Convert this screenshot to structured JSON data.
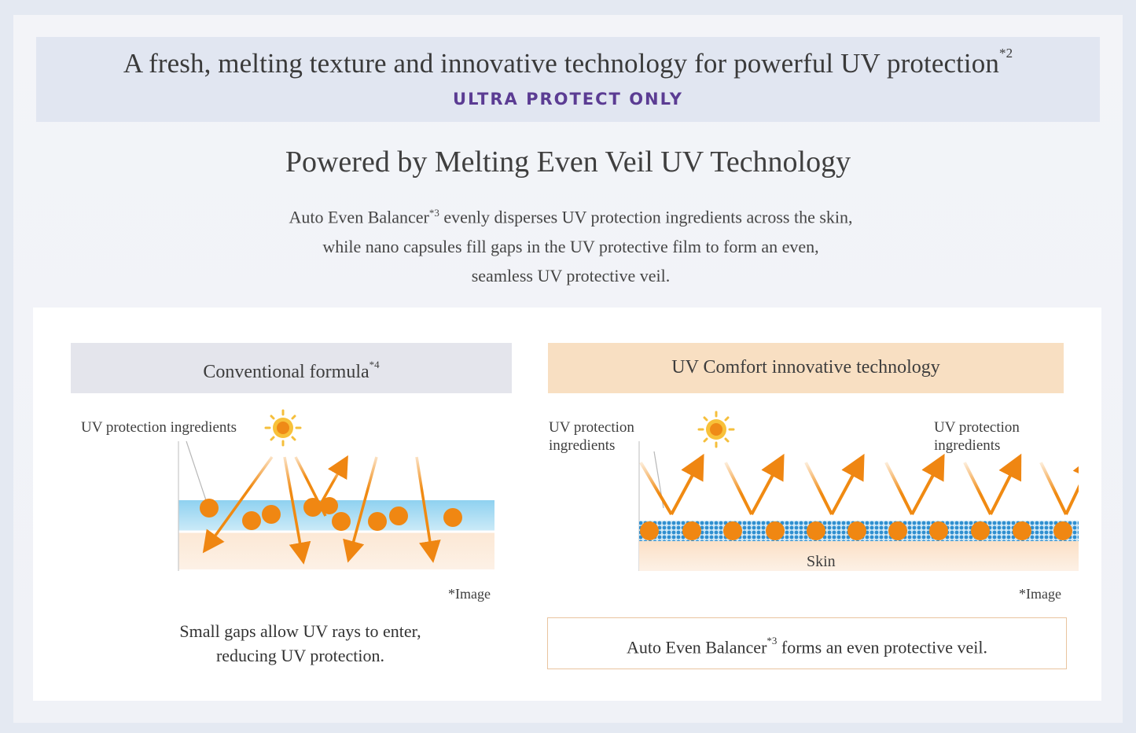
{
  "banner": {
    "title": "A fresh, melting texture and innovative technology for powerful UV protection",
    "title_note": "*2",
    "subtitle": "ULTRA PROTECT ONLY"
  },
  "section": {
    "heading": "Powered by Melting Even Veil UV Technology",
    "desc_line1_a": "Auto Even Balancer",
    "desc_line1_note": "*3",
    "desc_line1_b": " evenly disperses UV protection ingredients across the skin,",
    "desc_line2": "while nano capsules fill gaps in the UV protective film to form an even,",
    "desc_line3": "seamless UV protective veil."
  },
  "left": {
    "header": "Conventional formula",
    "header_note": "*4",
    "label_ingredients": "UV protection ingredients",
    "image_note": "*Image",
    "caption_line1": "Small gaps allow UV rays to enter,",
    "caption_line2": "reducing UV protection."
  },
  "right": {
    "header": "UV Comfort innovative technology",
    "label_ingredients_left_1": "UV protection",
    "label_ingredients_left_2": "ingredients",
    "label_ingredients_right_1": "UV protection",
    "label_ingredients_right_2": "ingredients",
    "skin_label": "Skin",
    "image_note": "*Image",
    "caption_a": "Auto Even Balancer",
    "caption_note": "*3",
    "caption_b": " forms an even protective veil."
  },
  "colors": {
    "accent_purple": "#5b3c93",
    "orange": "#f08a12",
    "blue_film": "#a9dcf3",
    "skin": "#fbe3cc"
  },
  "icons": [
    "sun-icon",
    "uv-ray-arrow-icon"
  ]
}
